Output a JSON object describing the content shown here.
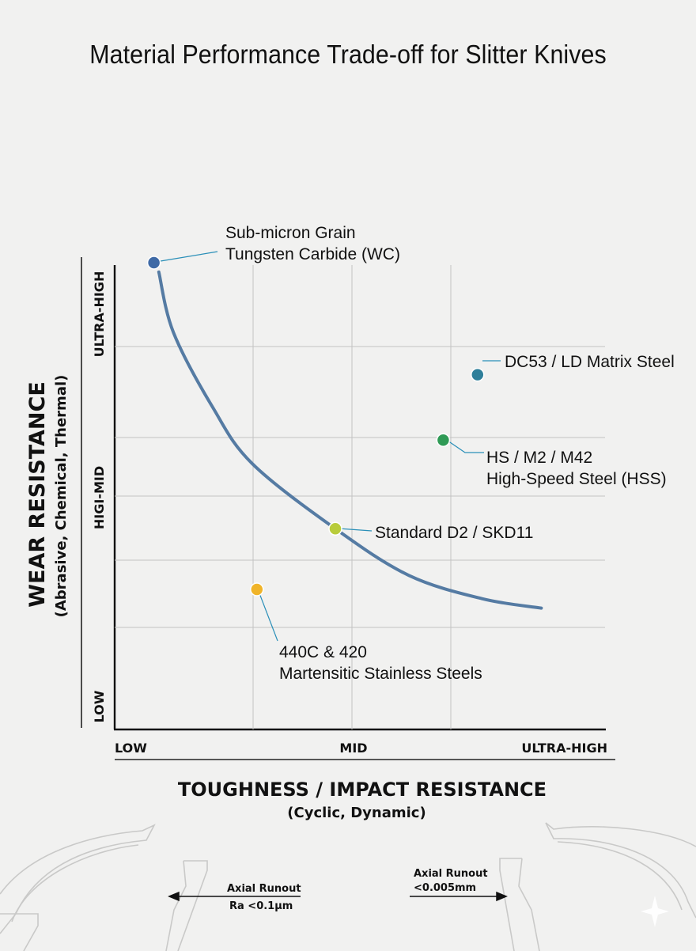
{
  "chart_data": {
    "type": "scatter",
    "title": "Material Performance Trade-off for Slitter Knives",
    "xlabel": "TOUGHNESS / IMPACT RESISTANCE",
    "xlabel_sub": "(Cyclic, Dynamic)",
    "ylabel": "WEAR RESISTANCE",
    "ylabel_sub": "(Abrasive, Chemical, Thermal)",
    "x_ticks": [
      "LOW",
      "MID",
      "ULTRA-HIGH"
    ],
    "y_ticks": [
      "LOW",
      "HIGI-MID",
      "ULTRA-HIGH"
    ],
    "xlim": [
      0,
      10
    ],
    "ylim": [
      0,
      10
    ],
    "grid": true,
    "points": [
      {
        "name": "Sub-micron Grain Tungsten Carbide (WC)",
        "label_lines": [
          "Sub-micron Grain",
          "Tungsten Carbide (WC)"
        ],
        "x": 0.8,
        "y": 10.0,
        "color": "#3f6aa6"
      },
      {
        "name": "DC53 / LD Matrix Steel",
        "label_lines": [
          "DC53 / LD Matrix Steel"
        ],
        "x": 7.4,
        "y": 7.6,
        "color": "#2f7f9a"
      },
      {
        "name": "HS / M2 / M42 High-Speed Steel (HSS)",
        "label_lines": [
          "HS / M2 / M42",
          "High-Speed Steel (HSS)"
        ],
        "x": 6.7,
        "y": 6.2,
        "color": "#2f9a55"
      },
      {
        "name": "Standard D2 / SKD11",
        "label_lines": [
          "Standard D2 / SKD11"
        ],
        "x": 4.5,
        "y": 4.3,
        "color": "#b9cc3b"
      },
      {
        "name": "440C & 420 Martensitic Stainless Steels",
        "label_lines": [
          "440C & 420",
          "Martensitic Stainless Steels"
        ],
        "x": 2.9,
        "y": 3.0,
        "color": "#f0b429"
      }
    ],
    "curve": {
      "color": "#557ba3",
      "points": [
        [
          0.9,
          9.8
        ],
        [
          1.2,
          8.5
        ],
        [
          2.0,
          6.9
        ],
        [
          2.8,
          5.7
        ],
        [
          4.5,
          4.3
        ],
        [
          6.0,
          3.3
        ],
        [
          7.5,
          2.8
        ],
        [
          8.7,
          2.6
        ]
      ]
    }
  },
  "diagram_notes": [
    {
      "lines": [
        "Axial Runout",
        "Ra <0.1μm"
      ]
    },
    {
      "lines": [
        "Axial Runout",
        "<0.005mm"
      ]
    }
  ]
}
